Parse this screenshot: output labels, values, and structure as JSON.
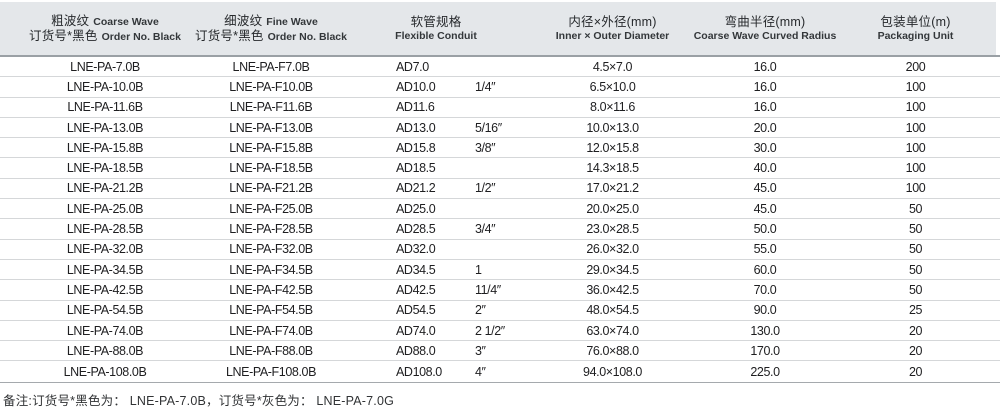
{
  "header": {
    "cols": [
      {
        "line1_cn": "粗波纹",
        "line1_en": "Coarse Wave",
        "line2_cn": "订货号*黑色",
        "line2_en": "Order No. Black"
      },
      {
        "line1_cn": "细波纹",
        "line1_en": "Fine Wave",
        "line2_cn": "订货号*黑色",
        "line2_en": "Order No. Black"
      },
      {
        "line1_cn": "软管规格",
        "line2_en": "Flexible Conduit"
      },
      {
        "line1_cn": "内径×外径(mm)",
        "line2_en": "Inner × Outer Diameter"
      },
      {
        "line1_cn": "弯曲半径(mm)",
        "line2_en": "Coarse Wave Curved Radius"
      },
      {
        "line1_cn": "包装单位(m)",
        "line2_en": "Packaging Unit"
      }
    ]
  },
  "table": {
    "rows": [
      {
        "coarse_order_no": "LNE-PA-7.0B",
        "fine_order_no": "LNE-PA-F7.0B",
        "conduit_size": "AD7.0",
        "conduit_inch": "",
        "inner_outer": "4.5×7.0",
        "bend_radius": "16.0",
        "packaging_unit": "200"
      },
      {
        "coarse_order_no": "LNE-PA-10.0B",
        "fine_order_no": "LNE-PA-F10.0B",
        "conduit_size": "AD10.0",
        "conduit_inch": "1/4″",
        "inner_outer": "6.5×10.0",
        "bend_radius": "16.0",
        "packaging_unit": "100"
      },
      {
        "coarse_order_no": "LNE-PA-11.6B",
        "fine_order_no": "LNE-PA-F11.6B",
        "conduit_size": "AD11.6",
        "conduit_inch": "",
        "inner_outer": "8.0×11.6",
        "bend_radius": "16.0",
        "packaging_unit": "100"
      },
      {
        "coarse_order_no": "LNE-PA-13.0B",
        "fine_order_no": "LNE-PA-F13.0B",
        "conduit_size": "AD13.0",
        "conduit_inch": "5/16″",
        "inner_outer": "10.0×13.0",
        "bend_radius": "20.0",
        "packaging_unit": "100"
      },
      {
        "coarse_order_no": "LNE-PA-15.8B",
        "fine_order_no": "LNE-PA-F15.8B",
        "conduit_size": "AD15.8",
        "conduit_inch": "3/8″",
        "inner_outer": "12.0×15.8",
        "bend_radius": "30.0",
        "packaging_unit": "100"
      },
      {
        "coarse_order_no": "LNE-PA-18.5B",
        "fine_order_no": "LNE-PA-F18.5B",
        "conduit_size": "AD18.5",
        "conduit_inch": "",
        "inner_outer": "14.3×18.5",
        "bend_radius": "40.0",
        "packaging_unit": "100"
      },
      {
        "coarse_order_no": "LNE-PA-21.2B",
        "fine_order_no": "LNE-PA-F21.2B",
        "conduit_size": "AD21.2",
        "conduit_inch": "1/2″",
        "inner_outer": "17.0×21.2",
        "bend_radius": "45.0",
        "packaging_unit": "100"
      },
      {
        "coarse_order_no": "LNE-PA-25.0B",
        "fine_order_no": "LNE-PA-F25.0B",
        "conduit_size": "AD25.0",
        "conduit_inch": "",
        "inner_outer": "20.0×25.0",
        "bend_radius": "45.0",
        "packaging_unit": "50"
      },
      {
        "coarse_order_no": "LNE-PA-28.5B",
        "fine_order_no": "LNE-PA-F28.5B",
        "conduit_size": "AD28.5",
        "conduit_inch": "3/4″",
        "inner_outer": "23.0×28.5",
        "bend_radius": "50.0",
        "packaging_unit": "50"
      },
      {
        "coarse_order_no": "LNE-PA-32.0B",
        "fine_order_no": "LNE-PA-F32.0B",
        "conduit_size": "AD32.0",
        "conduit_inch": "",
        "inner_outer": "26.0×32.0",
        "bend_radius": "55.0",
        "packaging_unit": "50"
      },
      {
        "coarse_order_no": "LNE-PA-34.5B",
        "fine_order_no": "LNE-PA-F34.5B",
        "conduit_size": "AD34.5",
        "conduit_inch": "1",
        "inner_outer": "29.0×34.5",
        "bend_radius": "60.0",
        "packaging_unit": "50"
      },
      {
        "coarse_order_no": "LNE-PA-42.5B",
        "fine_order_no": "LNE-PA-F42.5B",
        "conduit_size": "AD42.5",
        "conduit_inch": "11/4″",
        "inner_outer": "36.0×42.5",
        "bend_radius": "70.0",
        "packaging_unit": "50"
      },
      {
        "coarse_order_no": "LNE-PA-54.5B",
        "fine_order_no": "LNE-PA-F54.5B",
        "conduit_size": "AD54.5",
        "conduit_inch": "2″",
        "inner_outer": "48.0×54.5",
        "bend_radius": "90.0",
        "packaging_unit": "25"
      },
      {
        "coarse_order_no": "LNE-PA-74.0B",
        "fine_order_no": "LNE-PA-F74.0B",
        "conduit_size": "AD74.0",
        "conduit_inch": "2 1/2″",
        "inner_outer": "63.0×74.0",
        "bend_radius": "130.0",
        "packaging_unit": "20"
      },
      {
        "coarse_order_no": "LNE-PA-88.0B",
        "fine_order_no": "LNE-PA-F88.0B",
        "conduit_size": "AD88.0",
        "conduit_inch": "3″",
        "inner_outer": "76.0×88.0",
        "bend_radius": "170.0",
        "packaging_unit": "20"
      },
      {
        "coarse_order_no": "LNE-PA-108.0B",
        "fine_order_no": "LNE-PA-F108.0B",
        "conduit_size": "AD108.0",
        "conduit_inch": "4″",
        "inner_outer": "94.0×108.0",
        "bend_radius": "225.0",
        "packaging_unit": "20"
      }
    ]
  },
  "footnote": "备注:订货号*黑色为： LNE-PA-7.0B，订货号*灰色为： LNE-PA-7.0G",
  "colors": {
    "header_bg": "#e4e7ea",
    "header_rule": "#9aa0a5",
    "row_line": "#d5d7d9",
    "text": "#1e1e20"
  }
}
